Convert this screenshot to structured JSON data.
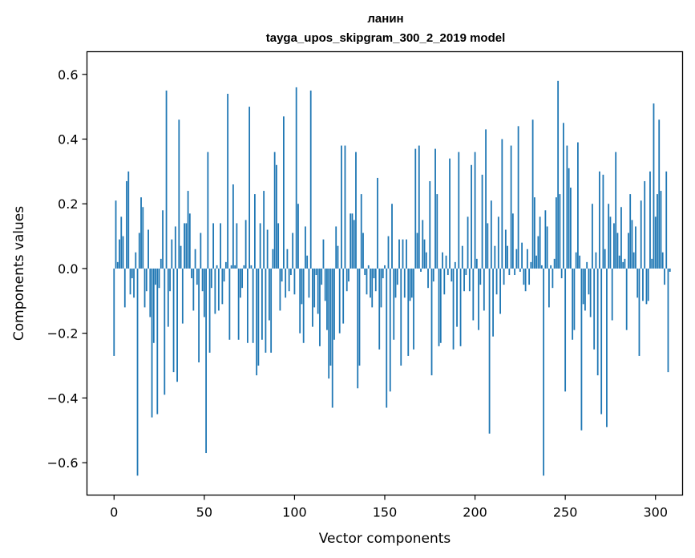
{
  "chart_data": {
    "type": "bar",
    "title": "ланин",
    "subtitle": "tayga_upos_skipgram_300_2_2019 model",
    "xlabel": "Vector components",
    "ylabel": "Components values",
    "xlim": [
      -15,
      315
    ],
    "ylim": [
      -0.7,
      0.67
    ],
    "xticks": [
      0,
      50,
      100,
      150,
      200,
      250,
      300
    ],
    "yticks": [
      0.6,
      0.4,
      0.2,
      0.0,
      -0.2,
      -0.4,
      -0.6
    ],
    "ytick_labels": [
      "0.6",
      "0.4",
      "0.2",
      "0.0",
      "−0.2",
      "−0.4",
      "−0.6"
    ],
    "grid": false,
    "bar_color": "#1f77b4",
    "values": [
      -0.27,
      0.21,
      0.02,
      0.09,
      0.16,
      0.1,
      -0.12,
      0.27,
      0.3,
      -0.08,
      -0.03,
      -0.09,
      0.05,
      -0.64,
      0.11,
      0.22,
      0.19,
      -0.12,
      -0.07,
      0.12,
      -0.15,
      -0.46,
      -0.23,
      -0.05,
      -0.45,
      -0.06,
      0.03,
      0.18,
      -0.39,
      0.55,
      -0.18,
      -0.07,
      0.09,
      -0.32,
      0.13,
      -0.35,
      0.46,
      0.07,
      -0.17,
      0.14,
      0.14,
      0.24,
      0.17,
      -0.03,
      -0.13,
      0.06,
      -0.05,
      -0.29,
      0.11,
      -0.07,
      -0.15,
      -0.57,
      0.36,
      -0.26,
      -0.06,
      0.14,
      -0.14,
      0.01,
      -0.13,
      0.14,
      -0.11,
      -0.04,
      0.02,
      0.54,
      -0.22,
      0.01,
      0.26,
      0.01,
      0.14,
      -0.22,
      -0.09,
      -0.06,
      0.01,
      0.15,
      -0.23,
      0.5,
      0.01,
      -0.23,
      0.23,
      -0.33,
      -0.3,
      0.14,
      -0.22,
      0.24,
      -0.26,
      0.12,
      -0.16,
      -0.26,
      0.06,
      0.36,
      0.32,
      0.14,
      -0.13,
      -0.04,
      0.47,
      -0.09,
      0.06,
      -0.07,
      -0.02,
      0.11,
      -0.08,
      0.56,
      0.2,
      -0.2,
      -0.11,
      -0.23,
      0.13,
      0.04,
      -0.09,
      0.55,
      -0.18,
      -0.12,
      -0.02,
      -0.14,
      -0.24,
      -0.05,
      0.09,
      -0.1,
      -0.19,
      -0.34,
      -0.3,
      -0.43,
      -0.22,
      0.13,
      0.07,
      -0.2,
      0.38,
      -0.17,
      0.38,
      -0.07,
      -0.04,
      0.17,
      0.17,
      0.15,
      0.36,
      -0.37,
      -0.3,
      0.23,
      0.11,
      -0.02,
      -0.08,
      0.01,
      -0.09,
      -0.12,
      -0.03,
      -0.07,
      0.28,
      -0.25,
      -0.12,
      -0.03,
      0.01,
      -0.43,
      0.1,
      -0.38,
      0.2,
      -0.22,
      -0.09,
      -0.05,
      0.09,
      -0.3,
      0.09,
      -0.09,
      0.09,
      -0.27,
      -0.1,
      -0.09,
      -0.25,
      0.37,
      0.11,
      0.38,
      -0.01,
      0.15,
      0.09,
      0.05,
      -0.06,
      0.27,
      -0.33,
      -0.04,
      0.37,
      0.23,
      -0.24,
      -0.23,
      0.05,
      -0.08,
      0.04,
      -0.02,
      0.34,
      -0.04,
      -0.25,
      0.02,
      -0.18,
      0.36,
      -0.24,
      0.07,
      -0.07,
      -0.02,
      0.16,
      -0.07,
      0.32,
      -0.16,
      0.36,
      0.03,
      -0.19,
      -0.05,
      0.29,
      -0.13,
      0.43,
      0.14,
      -0.51,
      0.21,
      -0.21,
      0.07,
      -0.08,
      0.16,
      -0.14,
      0.4,
      -0.05,
      0.12,
      0.07,
      -0.02,
      0.38,
      0.17,
      -0.02,
      0.06,
      0.44,
      -0.01,
      0.08,
      -0.05,
      -0.07,
      0.06,
      -0.05,
      0.02,
      0.46,
      0.22,
      0.04,
      0.1,
      0.16,
      0.01,
      -0.64,
      0.18,
      0.13,
      -0.12,
      0.01,
      -0.06,
      0.03,
      0.22,
      0.58,
      0.23,
      -0.03,
      0.45,
      -0.38,
      0.38,
      0.31,
      0.25,
      -0.22,
      -0.19,
      0.05,
      0.39,
      0.04,
      -0.5,
      -0.11,
      -0.13,
      0.02,
      -0.08,
      -0.15,
      0.2,
      -0.25,
      0.05,
      -0.33,
      0.3,
      -0.45,
      0.29,
      0.06,
      -0.49,
      0.2,
      0.16,
      -0.16,
      0.14,
      0.36,
      0.11,
      0.04,
      0.19,
      0.02,
      0.03,
      -0.19,
      0.11,
      0.23,
      0.15,
      0.05,
      0.13,
      -0.09,
      -0.27,
      0.21,
      -0.1,
      0.27,
      -0.11,
      -0.1,
      0.3,
      0.03,
      0.51,
      0.16,
      0.23,
      0.46,
      0.24,
      0.05,
      -0.05,
      0.3,
      -0.32,
      -0.01
    ]
  }
}
